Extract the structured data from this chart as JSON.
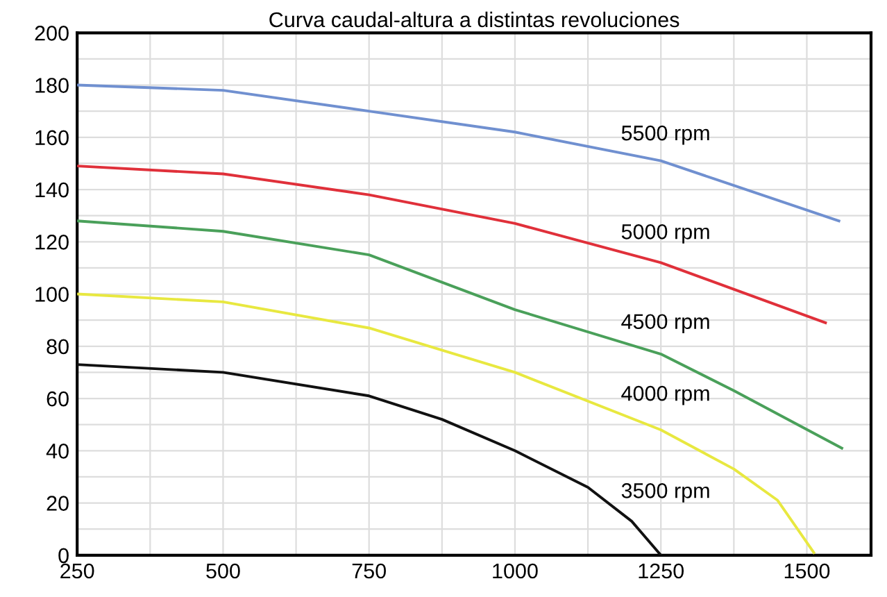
{
  "chart_data": {
    "type": "line",
    "title": "Curva caudal-altura a distintas revoluciones",
    "xlim": [
      250,
      1610
    ],
    "ylim": [
      0,
      200
    ],
    "xticks": [
      250,
      {
        "value": 375,
        "label": null
      },
      500,
      {
        "value": 625,
        "label": null
      },
      750,
      {
        "value": 875,
        "label": null
      },
      1000,
      {
        "value": 1125,
        "label": null
      },
      1250,
      {
        "value": 1375,
        "label": null
      },
      1500
    ],
    "yticks": [
      0,
      {
        "value": 10,
        "label": null
      },
      20,
      {
        "value": 30,
        "label": null
      },
      40,
      {
        "value": 50,
        "label": null
      },
      60,
      {
        "value": 70,
        "label": null
      },
      80,
      {
        "value": 90,
        "label": null
      },
      100,
      {
        "value": 110,
        "label": null
      },
      120,
      {
        "value": 130,
        "label": null
      },
      140,
      {
        "value": 150,
        "label": null
      },
      160,
      {
        "value": 170,
        "label": null
      },
      180,
      {
        "value": 190,
        "label": null
      },
      200
    ],
    "grid": true,
    "marker": "none",
    "line_style": "solid",
    "series": [
      {
        "name": "5500 rpm",
        "color": "#7090d0",
        "x": [
          250,
          500,
          750,
          1000,
          1250,
          1555
        ],
        "values": [
          180,
          178,
          170,
          162,
          151,
          128
        ]
      },
      {
        "name": "5000 rpm",
        "color": "#e0303a",
        "x": [
          250,
          500,
          750,
          1000,
          1250,
          1532
        ],
        "values": [
          149,
          146,
          138,
          127,
          112,
          89
        ]
      },
      {
        "name": "4500 rpm",
        "color": "#4aa05a",
        "x": [
          250,
          500,
          750,
          1000,
          1250,
          1375,
          1560
        ],
        "values": [
          128,
          124,
          115,
          94,
          77,
          63,
          41
        ]
      },
      {
        "name": "4000 rpm",
        "color": "#e8e840",
        "x": [
          250,
          500,
          750,
          1000,
          1250,
          1375,
          1450,
          1512
        ],
        "values": [
          100,
          97,
          87,
          70,
          48,
          33,
          21,
          1
        ]
      },
      {
        "name": "3500 rpm",
        "color": "#111111",
        "x": [
          250,
          500,
          750,
          875,
          1000,
          1125,
          1200,
          1250
        ],
        "values": [
          73,
          70,
          61,
          52,
          40,
          26,
          13,
          0
        ]
      }
    ]
  }
}
